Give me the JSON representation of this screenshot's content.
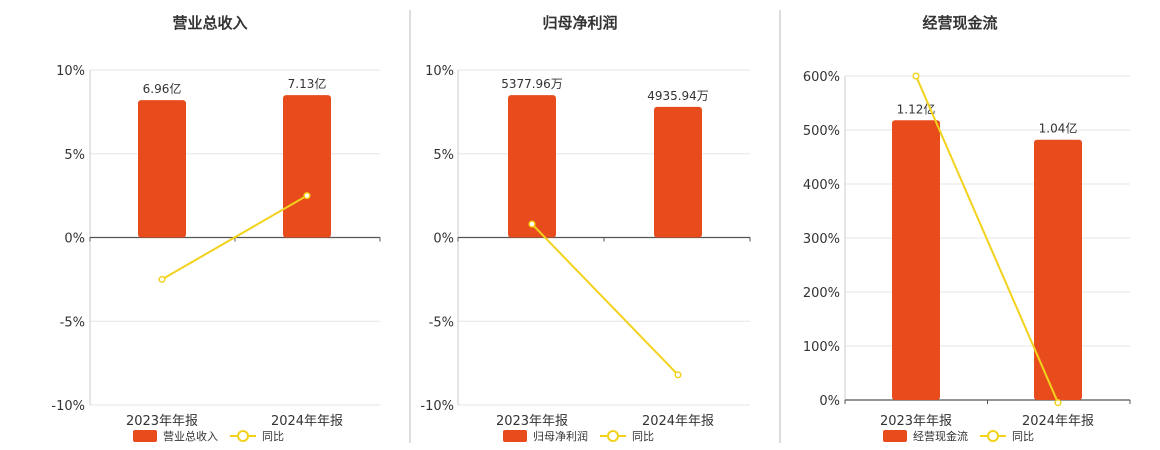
{
  "colors": {
    "bar": "#e84c1c",
    "line": "#f2d21c",
    "grid": "#e6e6e6",
    "axis": "#555555",
    "divider": "#bbbbbb",
    "text": "#333333"
  },
  "chart_data": [
    {
      "type": "bar",
      "title": "营业总收入",
      "categories": [
        "2023年年报",
        "2024年年报"
      ],
      "bar_values": [
        8.2,
        8.5
      ],
      "bar_labels": [
        "6.96亿",
        "7.13亿"
      ],
      "yoy": [
        -2.5,
        2.5
      ],
      "ylim": [
        -10,
        10
      ],
      "ticks": [
        10,
        5,
        0,
        -5,
        -10
      ],
      "tick_labels": [
        "10%",
        "5%",
        "0%",
        "-5%",
        "-10%"
      ],
      "legend": [
        "营业总收入",
        "同比"
      ],
      "legend_position": "bottom"
    },
    {
      "type": "bar",
      "title": "归母净利润",
      "categories": [
        "2023年年报",
        "2024年年报"
      ],
      "bar_values": [
        8.5,
        7.8
      ],
      "bar_labels": [
        "5377.96万",
        "4935.94万"
      ],
      "yoy": [
        0.8,
        -8.2
      ],
      "ylim": [
        -10,
        10
      ],
      "ticks": [
        10,
        5,
        0,
        -5,
        -10
      ],
      "tick_labels": [
        "10%",
        "5%",
        "0%",
        "-5%",
        "-10%"
      ],
      "legend": [
        "归母净利润",
        "同比"
      ],
      "legend_position": "bottom"
    },
    {
      "type": "bar",
      "title": "经营现金流",
      "categories": [
        "2023年年报",
        "2024年年报"
      ],
      "bar_values": [
        518,
        482
      ],
      "bar_labels": [
        "1.12亿",
        "1.04亿"
      ],
      "yoy": [
        600,
        -5
      ],
      "ylim": [
        0,
        600
      ],
      "ticks": [
        600,
        500,
        400,
        300,
        200,
        100,
        0
      ],
      "tick_labels": [
        "600%",
        "500%",
        "400%",
        "300%",
        "200%",
        "100%",
        "0%"
      ],
      "legend": [
        "经营现金流",
        "同比"
      ],
      "legend_position": "bottom"
    }
  ]
}
